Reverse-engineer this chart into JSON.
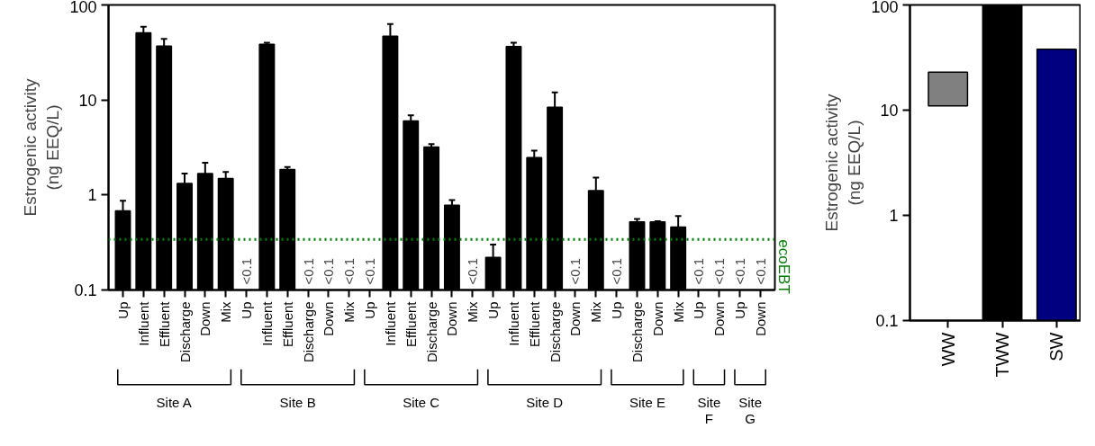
{
  "chart_data": [
    {
      "type": "bar",
      "ylabel": "Estrogenic activity (ng EEQ/L)",
      "log": true,
      "ylim": [
        0.1,
        100
      ],
      "yticks": [
        0.1,
        1,
        10,
        100
      ],
      "grid": false,
      "color": "#000000",
      "categories": [
        "Up",
        "Influent",
        "Effluent",
        "Discharge",
        "Down",
        "Mix",
        "Up",
        "Influent",
        "Effluent",
        "Discharge",
        "Down",
        "Mix",
        "Up",
        "Influent",
        "Effluent",
        "Discharge",
        "Down",
        "Mix",
        "Up",
        "Influent",
        "Effluent",
        "Discharge",
        "Down",
        "Mix",
        "Up",
        "Discharge",
        "Down",
        "Mix",
        "Up",
        "Down",
        "Up",
        "Down"
      ],
      "values": [
        0.68,
        51,
        37,
        1.32,
        1.68,
        1.49,
        null,
        38.6,
        1.85,
        null,
        null,
        null,
        null,
        47,
        6.0,
        3.2,
        0.78,
        null,
        0.22,
        36.6,
        2.48,
        8.4,
        null,
        1.11,
        null,
        0.52,
        0.52,
        0.46,
        null,
        null,
        null,
        null
      ],
      "errors": [
        [
          0.68,
          0.87
        ],
        [
          51,
          59
        ],
        [
          37,
          44
        ],
        [
          1.32,
          1.68
        ],
        [
          1.68,
          2.18
        ],
        [
          1.49,
          1.75
        ],
        null,
        [
          38.6,
          40
        ],
        [
          1.85,
          1.97
        ],
        null,
        null,
        null,
        null,
        [
          47,
          63
        ],
        [
          6.0,
          6.9
        ],
        [
          3.2,
          3.43
        ],
        [
          0.78,
          0.885
        ],
        null,
        [
          0.22,
          0.3
        ],
        [
          36.6,
          40
        ],
        [
          2.48,
          2.93
        ],
        [
          8.4,
          12.0
        ],
        null,
        [
          1.11,
          1.52
        ],
        null,
        [
          0.52,
          0.56
        ],
        [
          0.52,
          0.53
        ],
        [
          0.46,
          0.6
        ],
        null,
        null,
        null,
        null
      ],
      "value_labels": [
        null,
        null,
        null,
        null,
        null,
        null,
        "<0.1",
        null,
        null,
        "<0.1",
        "<0.1",
        "<0.1",
        "<0.1",
        null,
        null,
        null,
        null,
        "<0.1",
        null,
        null,
        null,
        null,
        "<0.1",
        null,
        "<0.1",
        null,
        null,
        null,
        "<0.1",
        "<0.1",
        "<0.1",
        "<0.1"
      ],
      "ref_lines": [
        {
          "axis": "y",
          "value": 0.34,
          "label": "ecoEBT",
          "color": "#008000",
          "line_style": "dotted"
        }
      ],
      "annotations": [
        "Site A",
        "Site B",
        "Site C",
        "Site D",
        "Site E",
        "Site F",
        "Site G"
      ]
    },
    {
      "type": "bar",
      "ylabel": "Estrogenic activity (ng EEQ/L)",
      "log": true,
      "ylim": [
        0.1,
        100
      ],
      "yticks": [
        0.1,
        1,
        10,
        100
      ],
      "grid": false,
      "categories": [
        "WW",
        "TWW",
        "SW"
      ],
      "base": [
        11,
        0.1,
        0.1
      ],
      "values": [
        12,
        99.9,
        37.9
      ],
      "colors": [
        "#808080",
        "#000000",
        "#000080"
      ]
    }
  ]
}
